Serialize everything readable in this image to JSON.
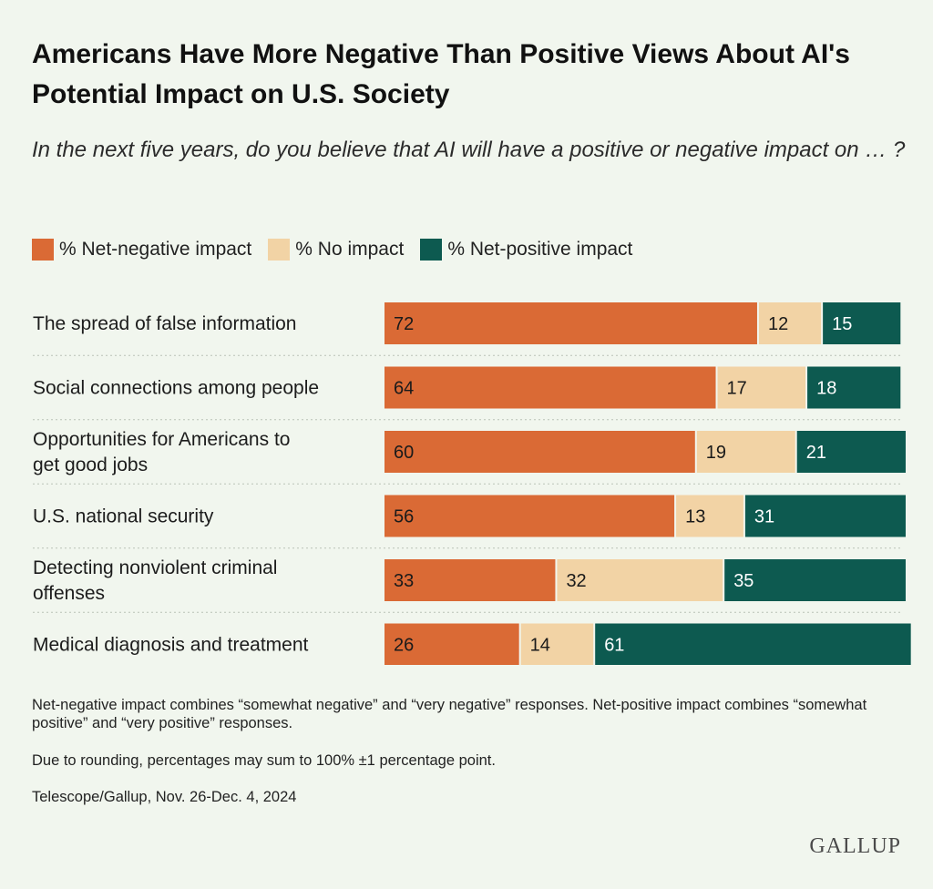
{
  "chart_data": {
    "type": "bar",
    "orientation": "horizontal",
    "stacked": true,
    "title": "Americans Have More Negative Than Positive Views About AI's Potential Impact on U.S. Society",
    "subtitle": "In the next five years, do you believe that AI will have a positive or negative impact on … ?",
    "categories": [
      [
        "The spread of false information"
      ],
      [
        "Social connections among people"
      ],
      [
        "Opportunities for Americans to",
        "get good jobs"
      ],
      [
        "U.S. national security"
      ],
      [
        "Detecting nonviolent criminal",
        "offenses"
      ],
      [
        "Medical diagnosis and treatment"
      ]
    ],
    "series": [
      {
        "name": "% Net-negative impact",
        "color": "#da6a35",
        "values": [
          72,
          64,
          60,
          56,
          33,
          26
        ]
      },
      {
        "name": "% No impact",
        "color": "#f2d3a5",
        "values": [
          12,
          17,
          19,
          13,
          32,
          14
        ]
      },
      {
        "name": "% Net-positive impact",
        "color": "#0d5a50",
        "values": [
          15,
          18,
          21,
          31,
          35,
          61
        ]
      }
    ],
    "legend_position": "top-left",
    "data_labels": true
  },
  "notes": [
    "Net-negative impact combines “somewhat negative” and “very negative” responses. Net-positive impact combines “somewhat positive” and “very positive” responses.",
    "Due to rounding, percentages may sum to 100% ±1 percentage point.",
    "Telescope/Gallup, Nov. 26-Dec. 4, 2024"
  ],
  "brand": "GALLUP"
}
